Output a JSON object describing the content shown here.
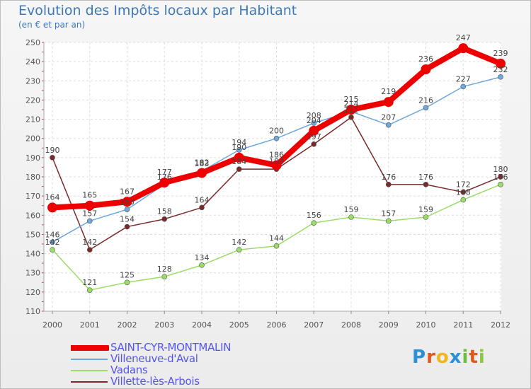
{
  "chart_data": {
    "type": "line",
    "title": "Evolution des Impôts locaux par Habitant",
    "subtitle": "(en € et par an)",
    "xlabel": "",
    "ylabel": "",
    "ylim": [
      110,
      250
    ],
    "yticks": [
      110,
      120,
      130,
      140,
      150,
      160,
      170,
      180,
      190,
      200,
      210,
      220,
      230,
      240,
      250
    ],
    "categories": [
      "2000",
      "2001",
      "2002",
      "2003",
      "2004",
      "2005",
      "2006",
      "2007",
      "2008",
      "2009",
      "2010",
      "2011",
      "2012"
    ],
    "grid": true,
    "legend_position": "bottom-left",
    "series": [
      {
        "name": "SAINT-CYR-MONTMALIN",
        "color": "#ee0000",
        "values": [
          164,
          165,
          167,
          177,
          182,
          190,
          186,
          204,
          215,
          219,
          236,
          247,
          239
        ],
        "labels": [
          "164",
          "165",
          "167",
          "177",
          "182",
          "190",
          "186",
          "204",
          "215",
          "219",
          "236",
          "247",
          "239"
        ]
      },
      {
        "name": "Villeneuve-d'Aval",
        "color": "#6fa8dc",
        "values": [
          146,
          157,
          163,
          176,
          183,
          194,
          200,
          208,
          214,
          207,
          216,
          227,
          232
        ],
        "labels": [
          "146",
          "157",
          "163",
          "176",
          "183",
          "194",
          "200",
          "208",
          "214",
          "207",
          "216",
          "227",
          "232"
        ]
      },
      {
        "name": "Vadans",
        "color": "#99dd66",
        "values": [
          142,
          121,
          125,
          128,
          134,
          142,
          144,
          156,
          159,
          157,
          159,
          168,
          176
        ],
        "labels": [
          "142",
          "121",
          "125",
          "128",
          "134",
          "142",
          "144",
          "156",
          "159",
          "157",
          "159",
          "168",
          "176"
        ]
      },
      {
        "name": "Villette-lès-Arbois",
        "color": "#7a2a2a",
        "values": [
          190,
          142,
          154,
          158,
          164,
          184,
          184,
          197,
          211,
          176,
          176,
          172,
          180
        ],
        "labels": [
          "190",
          "142",
          "154",
          "158",
          "164",
          "184",
          "184",
          "197",
          "211",
          "176",
          "176",
          "172",
          "180"
        ]
      }
    ]
  },
  "logo": {
    "p": "P",
    "r": "r",
    "o": "o",
    "x": "x",
    "i1": "i",
    "t": "t",
    "i2": "i"
  }
}
